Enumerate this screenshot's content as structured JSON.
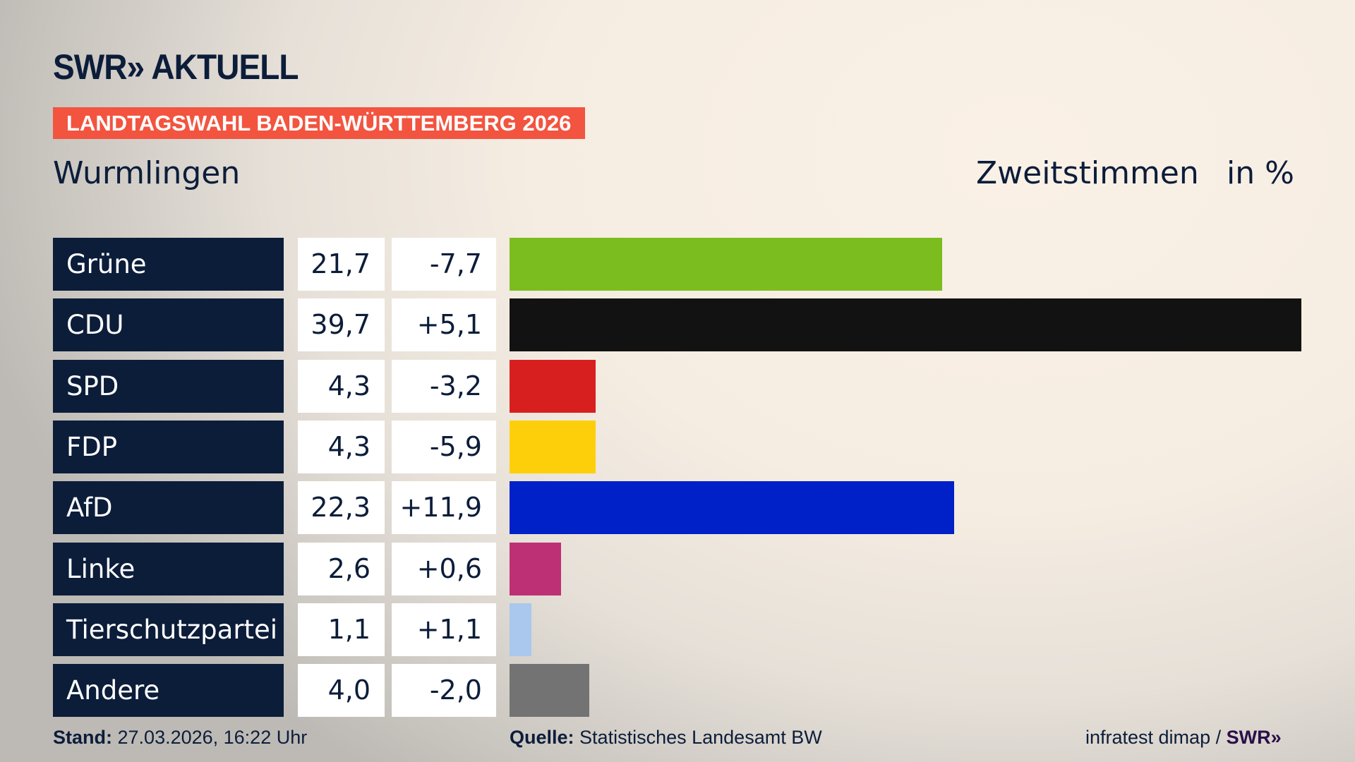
{
  "header": {
    "logo": "SWR» AKTUELL",
    "banner": "LANDTAGSWAHL BADEN-WÜRTTEMBERG 2026",
    "place": "Wurmlingen",
    "metric": "Zweitstimmen",
    "unit": "in %"
  },
  "chart_data": {
    "type": "bar",
    "categories": [
      "Grüne",
      "CDU",
      "SPD",
      "FDP",
      "AfD",
      "Linke",
      "Tierschutzpartei",
      "Andere"
    ],
    "values": [
      21.7,
      39.7,
      4.3,
      4.3,
      22.3,
      2.6,
      1.1,
      4.0
    ],
    "value_labels": [
      "21,7",
      "39,7",
      "4,3",
      "4,3",
      "22,3",
      "2,6",
      "1,1",
      "4,0"
    ],
    "changes": [
      "-7,7",
      "+5,1",
      "-3,2",
      "-5,9",
      "+11,9",
      "+0,6",
      "+1,1",
      "-2,0"
    ],
    "colors": [
      "#7bbd1e",
      "#121212",
      "#d81f1f",
      "#fdcf0a",
      "#0020c8",
      "#be3075",
      "#aac8ee",
      "#737373"
    ],
    "title": "Zweitstimmen",
    "ylabel": "in %"
  },
  "footer": {
    "stand_label": "Stand:",
    "stand_value": "27.03.2026, 16:22 Uhr",
    "source_label": "Quelle:",
    "source_value": "Statistisches Landesamt BW",
    "credit": "infratest dimap /",
    "credit_logo": "SWR»"
  }
}
